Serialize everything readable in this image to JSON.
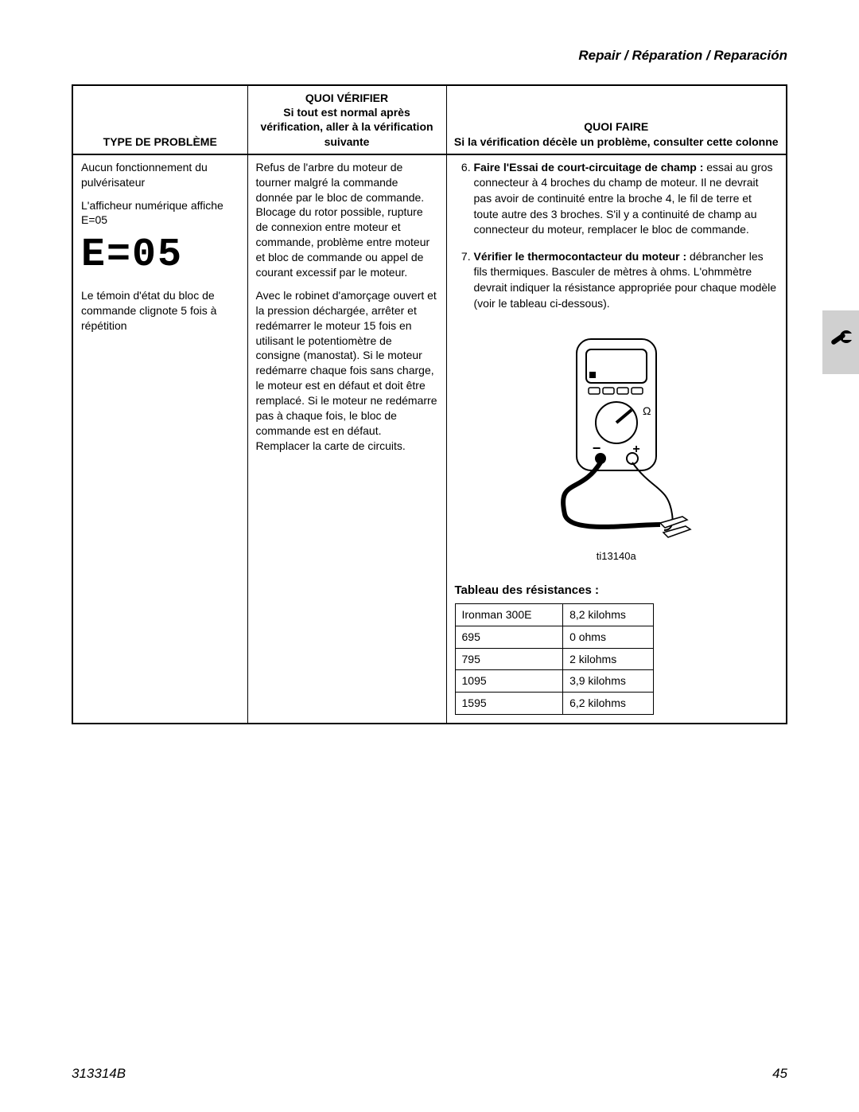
{
  "header_text": "Repair / Réparation / Reparación",
  "columns": {
    "type": "TYPE DE PROBLÈME",
    "check_line1": "QUOI VÉRIFIER",
    "check_line2": "Si tout est normal après vérification, aller à la vérification suivante",
    "do_line1": "QUOI FAIRE",
    "do_line2": "Si la vérification décèle un problème, consulter cette colonne"
  },
  "type_cell": {
    "p1": "Aucun fonctionnement du pulvérisateur",
    "p2": "L'afficheur numérique affiche E=05",
    "display_code": "E=05",
    "p3": "Le témoin d'état du bloc de commande clignote 5 fois à répétition"
  },
  "check_cell": {
    "p1": "Refus de l'arbre du moteur de tourner malgré la commande donnée par le bloc de commande. Blocage du rotor possible, rupture de connexion entre moteur et commande, problème entre moteur et bloc de commande ou appel de courant excessif par le moteur.",
    "p2": "Avec le robinet d'amorçage ouvert et la pression déchargée, arrêter et redémarrer le moteur 15 fois en utilisant le potentiomètre de consigne (manostat). Si le moteur redémarre chaque fois sans charge, le moteur est en défaut et doit être remplacé. Si le moteur ne redémarre pas à chaque fois, le bloc de commande est en défaut. Remplacer la carte de circuits."
  },
  "do_cell": {
    "step6_bold": "Faire l'Essai de court-circuitage de champ :",
    "step6_rest": " essai au gros connecteur à 4 broches du champ de moteur. Il ne devrait pas avoir de continuité entre la broche 4, le fil de terre et toute autre des 3 broches. S'il y a continuité de champ au connecteur du moteur, remplacer le bloc de commande.",
    "step7_bold": "Vérifier le thermocontacteur du moteur :",
    "step7_rest": " débrancher les fils thermiques. Basculer de mètres à ohms. L'ohmmètre devrait indiquer la résistance appropriée pour chaque modèle (voir le tableau ci-dessous).",
    "image_caption": "ti13140a",
    "resist_title": "Tableau des résistances :",
    "resist_rows": [
      [
        "Ironman 300E",
        "8,2 kilohms"
      ],
      [
        "695",
        "0 ohms"
      ],
      [
        "795",
        "2 kilohms"
      ],
      [
        "1095",
        "3,9 kilohms"
      ],
      [
        "1595",
        "6,2 kilohms"
      ]
    ]
  },
  "footer": {
    "doc_ref": "313314B",
    "page_num": "45"
  },
  "colors": {
    "background": "#ffffff",
    "text": "#000000",
    "tab_bg": "#d0d0d0"
  }
}
